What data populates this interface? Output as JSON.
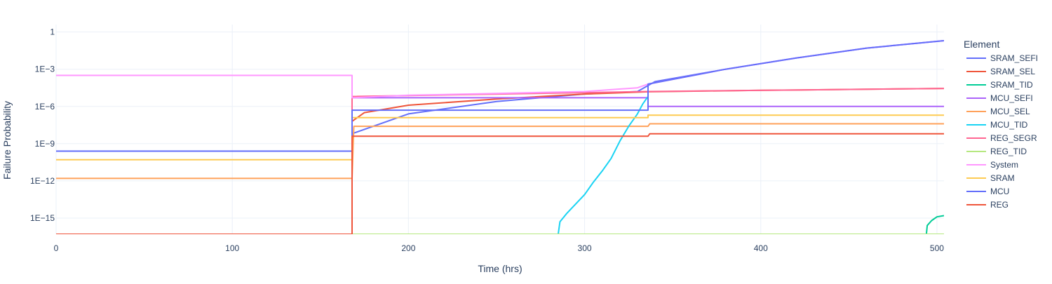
{
  "chart_data": {
    "type": "line",
    "title": "",
    "xlabel": "Time (hrs)",
    "ylabel": "Failure Probability",
    "y_scale": "log",
    "xlim": [
      0,
      504
    ],
    "ylim_log10": [
      -16.3,
      0.6
    ],
    "x_ticks": [
      0,
      100,
      200,
      300,
      400,
      500
    ],
    "x_tick_labels": [
      "0",
      "100",
      "200",
      "300",
      "400",
      "500"
    ],
    "y_ticks_log10": [
      0,
      -3,
      -6,
      -9,
      -12,
      -15
    ],
    "y_tick_labels": [
      "1",
      "1E−3",
      "1E−6",
      "1E−9",
      "1E−12",
      "1E−15"
    ],
    "grid": true,
    "legend_title": "Element",
    "legend_position": "right",
    "series": [
      {
        "name": "SRAM_SEFI",
        "color": "#636efa",
        "log10_points": [
          [
            0,
            -16.3
          ],
          [
            168,
            -16.3
          ],
          [
            168,
            -8.2
          ],
          [
            200,
            -6.6
          ],
          [
            250,
            -5.6
          ],
          [
            300,
            -5.0
          ],
          [
            330,
            -4.8
          ],
          [
            340,
            -4.0
          ],
          [
            380,
            -3.0
          ],
          [
            420,
            -2.1
          ],
          [
            460,
            -1.3
          ],
          [
            504,
            -0.7
          ]
        ]
      },
      {
        "name": "SRAM_SEL",
        "color": "#ef553b",
        "log10_points": [
          [
            0,
            -16.3
          ],
          [
            168,
            -16.3
          ],
          [
            168,
            -7.2
          ],
          [
            175,
            -6.5
          ],
          [
            200,
            -5.9
          ],
          [
            250,
            -5.4
          ],
          [
            300,
            -5.0
          ],
          [
            336,
            -4.82
          ],
          [
            400,
            -4.7
          ],
          [
            504,
            -4.55
          ]
        ]
      },
      {
        "name": "SRAM_TID",
        "color": "#00cc96",
        "log10_points": [
          [
            494,
            -16.3
          ],
          [
            494.5,
            -15.6
          ],
          [
            497,
            -15.2
          ],
          [
            500,
            -14.9
          ],
          [
            504,
            -14.8
          ]
        ]
      },
      {
        "name": "MCU_SEFI",
        "color": "#ab63fa",
        "log10_points": [
          [
            168,
            -5.3
          ],
          [
            336,
            -5.3
          ],
          [
            336,
            -6.0
          ],
          [
            504,
            -6.0
          ]
        ]
      },
      {
        "name": "MCU_SEL",
        "color": "#ffa15a",
        "log10_points": [
          [
            0,
            -11.8
          ],
          [
            168,
            -11.8
          ],
          [
            169,
            -7.6
          ],
          [
            336,
            -7.6
          ],
          [
            337,
            -7.4
          ],
          [
            504,
            -7.4
          ]
        ]
      },
      {
        "name": "MCU_TID",
        "color": "#19d3f3",
        "log10_points": [
          [
            285,
            -16.3
          ],
          [
            286,
            -15.3
          ],
          [
            290,
            -14.6
          ],
          [
            300,
            -13.1
          ],
          [
            305,
            -12.1
          ],
          [
            310,
            -11.2
          ],
          [
            315,
            -10.2
          ],
          [
            320,
            -8.8
          ],
          [
            325,
            -7.6
          ],
          [
            330,
            -6.6
          ],
          [
            333,
            -5.8
          ],
          [
            336,
            -5.2
          ]
        ]
      },
      {
        "name": "REG_SEGR",
        "color": "#ff6692",
        "log10_points": [
          [
            0,
            -16.3
          ],
          [
            168,
            -16.3
          ],
          [
            168,
            -5.2
          ],
          [
            336,
            -4.8
          ],
          [
            504,
            -4.55
          ]
        ]
      },
      {
        "name": "REG_TID",
        "color": "#b6e880",
        "log10_points": [
          [
            0,
            -16.3
          ],
          [
            504,
            -16.3
          ]
        ]
      },
      {
        "name": "System",
        "color": "#ff97ff",
        "log10_points": [
          [
            0,
            -3.5
          ],
          [
            168,
            -3.5
          ],
          [
            168,
            -5.3
          ],
          [
            200,
            -5.1
          ],
          [
            250,
            -4.95
          ],
          [
            300,
            -4.8
          ],
          [
            330,
            -4.5
          ],
          [
            336,
            -4.2
          ],
          [
            380,
            -3.0
          ],
          [
            420,
            -2.1
          ],
          [
            460,
            -1.3
          ],
          [
            504,
            -0.7
          ]
        ]
      },
      {
        "name": "SRAM",
        "color": "#fecb52",
        "log10_points": [
          [
            0,
            -10.3
          ],
          [
            168,
            -10.3
          ],
          [
            168,
            -6.9
          ],
          [
            336,
            -6.9
          ],
          [
            336,
            -6.7
          ],
          [
            504,
            -6.7
          ]
        ]
      },
      {
        "name": "MCU",
        "color": "#636efa",
        "log10_points": [
          [
            0,
            -9.6
          ],
          [
            168,
            -9.6
          ],
          [
            168,
            -6.3
          ],
          [
            336,
            -6.3
          ],
          [
            336,
            -4.2
          ],
          [
            380,
            -3.0
          ],
          [
            420,
            -2.1
          ],
          [
            460,
            -1.3
          ],
          [
            504,
            -0.7
          ]
        ]
      },
      {
        "name": "REG",
        "color": "#ef553b",
        "log10_points": [
          [
            0,
            -16.3
          ],
          [
            168,
            -16.3
          ],
          [
            168,
            -8.4
          ],
          [
            336,
            -8.4
          ],
          [
            337,
            -8.2
          ],
          [
            504,
            -8.2
          ]
        ]
      }
    ]
  }
}
